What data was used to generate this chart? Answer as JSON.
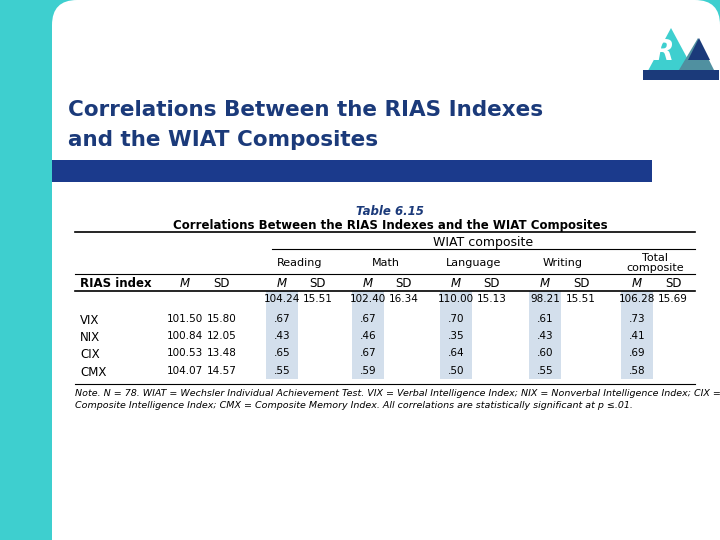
{
  "title_line1": "Correlations Between the RIAS Indexes",
  "title_line2": "and the WIAT Composites",
  "title_color": "#1B3A7A",
  "teal_color": "#3ECFCF",
  "dark_blue_bar": "#1B3A8C",
  "table_title": "Table 6.15",
  "table_subtitle": "Correlations Between the RIAS Indexes and the WIAT Composites",
  "wiat_header": "WIAT composite",
  "shaded_col_color": "#C8D8E8",
  "note_text": "Note. N = 78. WIAT = Wechsler Individual Achievement Test. VIX = Verbal Intelligence Index; NIX = Nonverbal Intelligence Index; CIX =\nComposite Intelligence Index; CMX = Composite Memory Index. All correlations are statistically significant at p ≤.01.",
  "means_row": [
    "104.24",
    "15.51",
    "102.40",
    "16.34",
    "110.00",
    "15.13",
    "98.21",
    "15.51",
    "106.28",
    "15.69"
  ],
  "data_rows": [
    [
      "VIX",
      "101.50",
      "15.80",
      ".67",
      ".67",
      ".70",
      ".61",
      ".73"
    ],
    [
      "NIX",
      "100.84",
      "12.05",
      ".43",
      ".46",
      ".35",
      ".43",
      ".41"
    ],
    [
      "CIX",
      "100.53",
      "13.48",
      ".65",
      ".67",
      ".64",
      ".60",
      ".69"
    ],
    [
      "CMX",
      "104.07",
      "14.57",
      ".55",
      ".59",
      ".50",
      ".55",
      ".58"
    ]
  ],
  "logo_teal": "#3ECFCF",
  "logo_dark": "#1B3A7A",
  "logo_mid": "#5090A0",
  "logo_red": "#CC2222"
}
